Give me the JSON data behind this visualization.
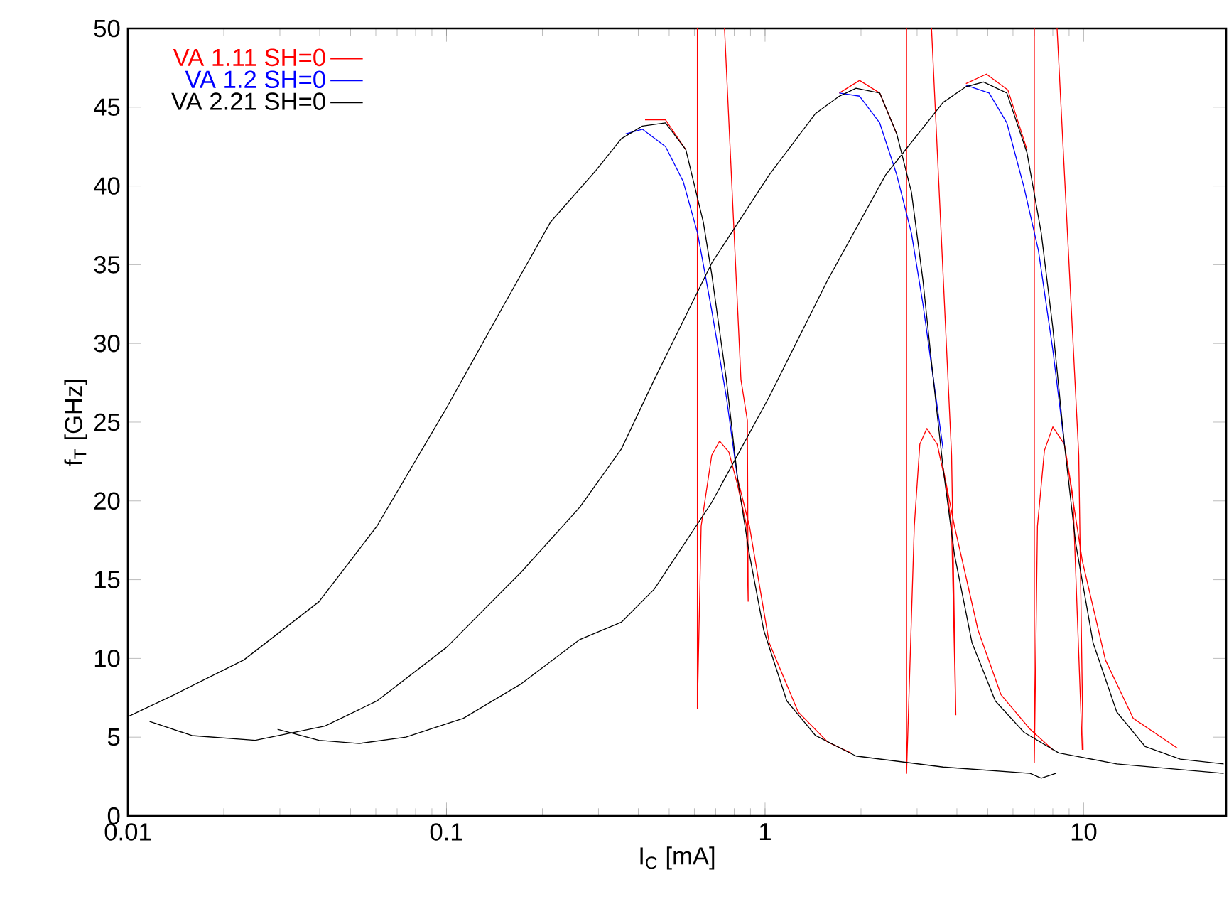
{
  "chart_data": {
    "type": "line",
    "xlabel": "I$_{C}$ [mA]",
    "ylabel": "f$_{T}$ [GHz]",
    "log": "x",
    "legend": "top left",
    "xlim": [
      0.01,
      28
    ],
    "ylim": [
      0,
      50
    ],
    "xticks": [
      0.01,
      0.1,
      1,
      10
    ],
    "yticks": [
      0,
      5,
      10,
      15,
      20,
      25,
      30,
      35,
      40,
      45,
      50
    ],
    "series": [
      {
        "name": "VA 1.11 SH=0",
        "color": "#ff0000",
        "x": [
          0.42,
          0.487,
          0.564,
          null,
          0.82,
          0.893,
          1.03,
          1.27,
          1.57,
          1.86,
          null,
          1.71,
          1.98,
          2.29,
          2.59,
          null,
          3.62,
          3.93,
          4.66,
          5.5,
          6.79,
          8.0,
          null,
          4.27,
          4.95,
          5.78,
          6.64,
          null,
          8.7,
          9.9,
          11.7,
          14.3,
          19.7,
          null,
          0.613,
          0.613,
          0.63,
          0.68,
          0.72,
          0.77,
          0.82,
          0.875,
          0.885,
          null,
          0.746,
          0.84,
          0.88,
          0.885,
          null,
          2.78,
          2.78,
          2.94,
          3.06,
          3.22,
          3.47,
          3.7,
          3.85,
          3.97,
          null,
          3.33,
          3.85,
          3.97,
          null,
          7.0,
          7.0,
          7.16,
          7.53,
          8.0,
          8.7,
          9.25,
          9.9,
          null,
          8.25,
          9.65,
          9.96
        ],
        "values": [
          44.2,
          44.2,
          42.3,
          null,
          21.4,
          18.4,
          11.0,
          6.6,
          4.7,
          4.0,
          null,
          45.9,
          46.7,
          45.9,
          43.3,
          null,
          22.1,
          18.4,
          11.8,
          7.7,
          5.5,
          4.2,
          null,
          46.5,
          47.1,
          46.1,
          42.3,
          null,
          23.6,
          16.2,
          9.9,
          6.2,
          4.3,
          null,
          50,
          6.8,
          18.4,
          22.9,
          23.8,
          23.1,
          21.0,
          18.4,
          13.6,
          null,
          50,
          27.7,
          25.1,
          13.6,
          null,
          50,
          2.7,
          18.4,
          23.6,
          24.6,
          23.6,
          21.0,
          18.4,
          6.4,
          null,
          50,
          22.9,
          6.4,
          null,
          50,
          3.4,
          18.4,
          23.2,
          24.7,
          23.6,
          20.3,
          4.2,
          null,
          50,
          22.9,
          4.2
        ]
      },
      {
        "name": "VA 1.2 SH=0",
        "color": "#0000ff",
        "x": [
          0.365,
          0.412,
          0.487,
          0.553,
          0.614,
          0.68,
          0.756,
          0.82,
          null,
          1.71,
          1.98,
          2.29,
          2.59,
          2.88,
          3.13,
          3.62,
          null,
          4.27,
          5.05,
          5.74,
          6.5,
          7.21,
          8.0,
          8.7
        ],
        "values": [
          43.3,
          43.6,
          42.5,
          40.3,
          37.0,
          32.1,
          26.6,
          21.4,
          null,
          45.9,
          45.7,
          44.0,
          40.7,
          37.0,
          32.5,
          23.3,
          null,
          46.4,
          45.9,
          44.0,
          39.9,
          35.9,
          29.6,
          23.6
        ]
      },
      {
        "name": "VA 2.21 SH=0",
        "color": "#000000",
        "x": [
          0.01,
          0.014,
          0.0231,
          0.0398,
          0.0605,
          0.1,
          0.152,
          0.212,
          0.295,
          0.354,
          0.412,
          0.487,
          0.564,
          0.64,
          0.68,
          0.756,
          0.82,
          0.893,
          0.99,
          1.17,
          1.44,
          1.93,
          3.62,
          6.79,
          7.36,
          8.17,
          null,
          0.0117,
          0.0159,
          0.0251,
          0.0415,
          0.0605,
          0.1,
          0.172,
          0.262,
          0.354,
          0.449,
          0.68,
          1.03,
          1.44,
          1.71,
          1.93,
          2.29,
          2.59,
          2.88,
          3.13,
          3.33,
          3.62,
          3.93,
          4.46,
          5.28,
          6.5,
          8.35,
          12.7,
          27.5,
          null,
          0.0295,
          0.0398,
          0.0533,
          0.0746,
          0.113,
          0.172,
          0.262,
          0.354,
          0.449,
          0.68,
          1.03,
          1.57,
          2.39,
          3.62,
          4.27,
          4.85,
          5.74,
          6.64,
          7.36,
          8.0,
          8.7,
          9.44,
          10.7,
          12.7,
          15.6,
          20.1,
          27.5
        ],
        "values": [
          6.3,
          7.7,
          9.9,
          13.6,
          18.4,
          25.9,
          32.5,
          37.7,
          41.0,
          43.0,
          43.8,
          44.0,
          42.3,
          37.7,
          34.4,
          27.7,
          21.4,
          16.6,
          11.8,
          7.3,
          5.1,
          3.8,
          3.1,
          2.7,
          2.4,
          2.7,
          null,
          6.0,
          5.1,
          4.8,
          5.7,
          7.3,
          10.7,
          15.5,
          19.6,
          23.3,
          27.7,
          35.1,
          40.7,
          44.6,
          45.7,
          46.2,
          45.9,
          43.3,
          39.6,
          34.0,
          28.8,
          22.1,
          16.6,
          11.0,
          7.3,
          5.3,
          4.0,
          3.3,
          2.7,
          null,
          5.5,
          4.8,
          4.6,
          5.0,
          6.2,
          8.4,
          11.2,
          12.3,
          14.4,
          19.9,
          26.6,
          34.0,
          40.7,
          45.3,
          46.3,
          46.6,
          45.9,
          42.1,
          37.0,
          31.0,
          23.6,
          17.3,
          11.0,
          6.6,
          4.4,
          3.6,
          3.3
        ]
      }
    ]
  }
}
